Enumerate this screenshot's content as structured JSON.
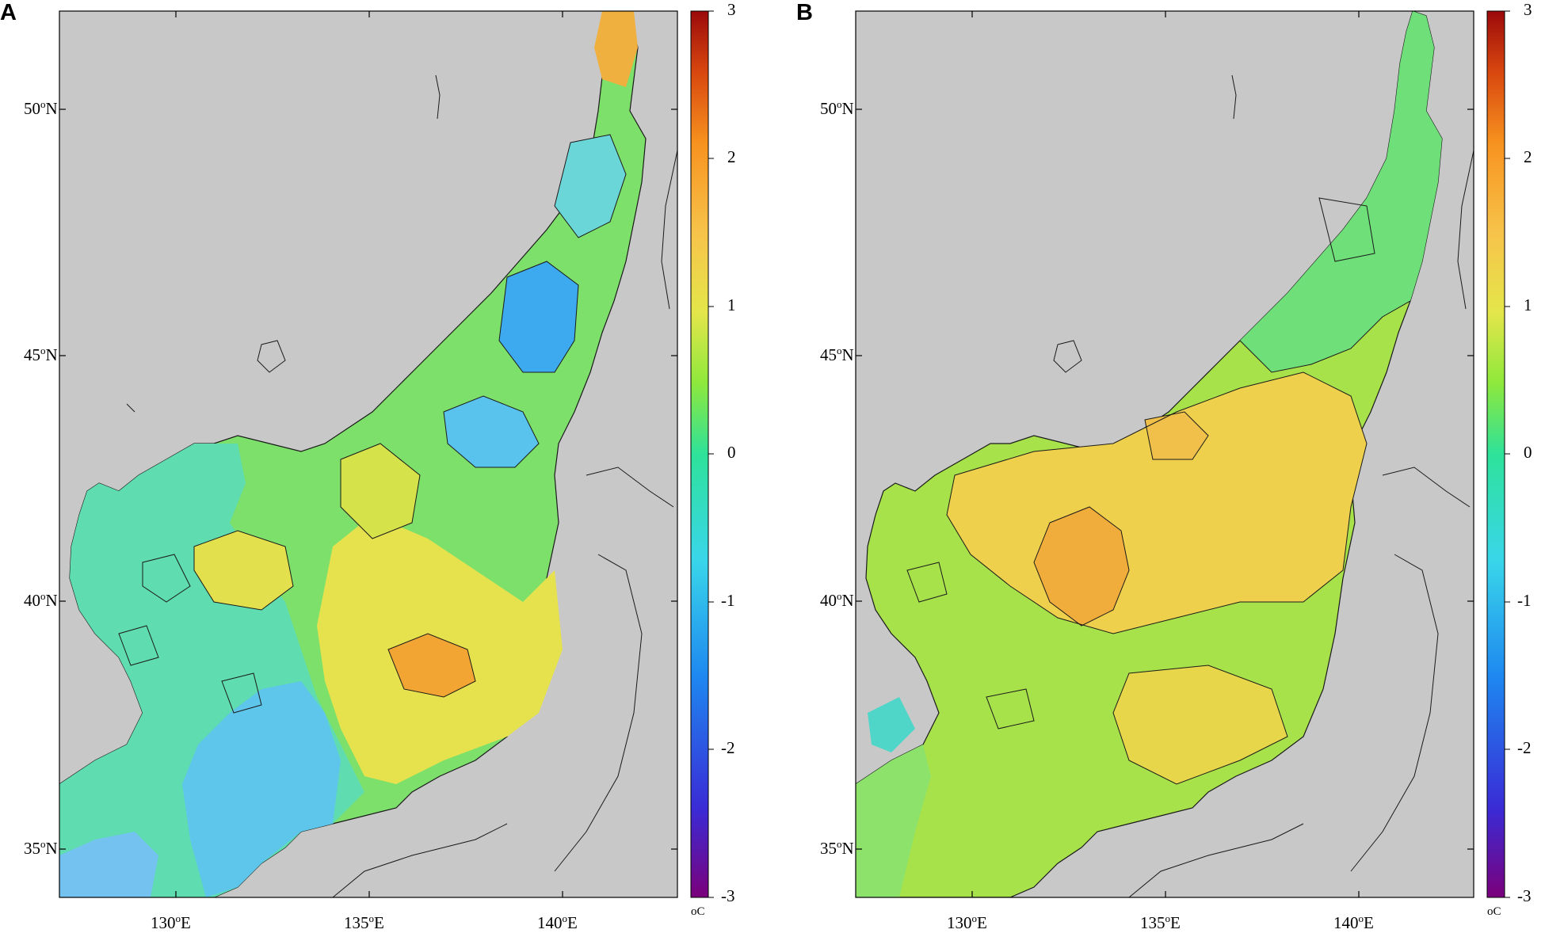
{
  "panels": [
    {
      "letter": "A",
      "lat_labels": [
        "50",
        "45",
        "40",
        "35"
      ],
      "lat_suffix": "N",
      "lon_labels": [
        "130",
        "135",
        "140"
      ],
      "lon_suffix": "E",
      "degree": "o",
      "colorbar_ticks": [
        "3",
        "2",
        "1",
        "0",
        "-1",
        "-2",
        "-3"
      ],
      "unit": "oC"
    },
    {
      "letter": "B",
      "lat_labels": [
        "50",
        "45",
        "40",
        "35"
      ],
      "lat_suffix": "N",
      "lon_labels": [
        "130",
        "135",
        "140"
      ],
      "lon_suffix": "E",
      "degree": "o",
      "colorbar_ticks": [
        "3",
        "2",
        "1",
        "0",
        "-1",
        "-2",
        "-3"
      ],
      "unit": "oC"
    }
  ],
  "colors": {
    "land": "#c8c8c8",
    "coast": "#1a1a1a",
    "colormap": [
      "#7b007b",
      "#3a2bd6",
      "#1e88f0",
      "#39d6ea",
      "#2ee29a",
      "#8ee83c",
      "#e4e64a",
      "#f7c34a",
      "#f7931f",
      "#d9480f",
      "#9b0a0a"
    ]
  }
}
